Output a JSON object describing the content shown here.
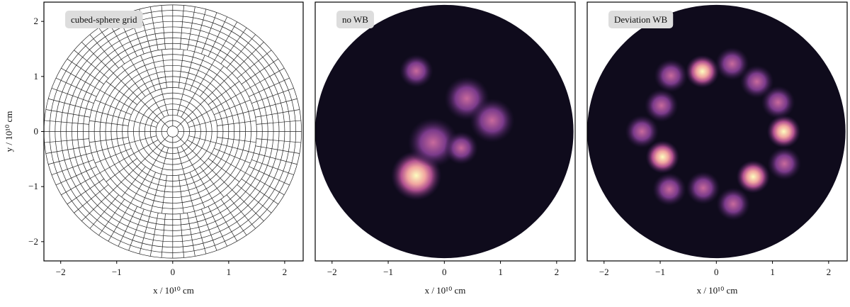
{
  "chart_data": [
    {
      "type": "mesh",
      "title": "cubed-sphere grid",
      "xlabel": "x / 10¹⁰ cm",
      "ylabel": "y / 10¹⁰ cm",
      "xlim": [
        -2.3,
        2.33
      ],
      "ylim": [
        -2.35,
        2.35
      ],
      "xticks": [
        {
          "value": -2,
          "label": "−2"
        },
        {
          "value": -1,
          "label": "−1"
        },
        0,
        1,
        2
      ],
      "yticks": [
        {
          "value": -2,
          "label": "−2"
        },
        {
          "value": -1,
          "label": "−1"
        },
        0,
        1,
        2
      ]
    },
    {
      "type": "image",
      "title": "no WB",
      "xlabel": "x / 10¹⁰ cm",
      "xlim": [
        -2.3,
        2.33
      ],
      "ylim": [
        -2.35,
        2.35
      ],
      "xticks": [
        {
          "value": -2,
          "label": "−2"
        },
        {
          "value": -1,
          "label": "−1"
        },
        0,
        1,
        2
      ]
    },
    {
      "type": "image",
      "title": "Deviation WB",
      "xlabel": "x / 10¹⁰ cm",
      "xlim": [
        -2.3,
        2.33
      ],
      "ylim": [
        -2.35,
        2.35
      ],
      "xticks": [
        {
          "value": -2,
          "label": "−2"
        },
        {
          "value": -1,
          "label": "−1"
        },
        0,
        1,
        2
      ]
    }
  ]
}
